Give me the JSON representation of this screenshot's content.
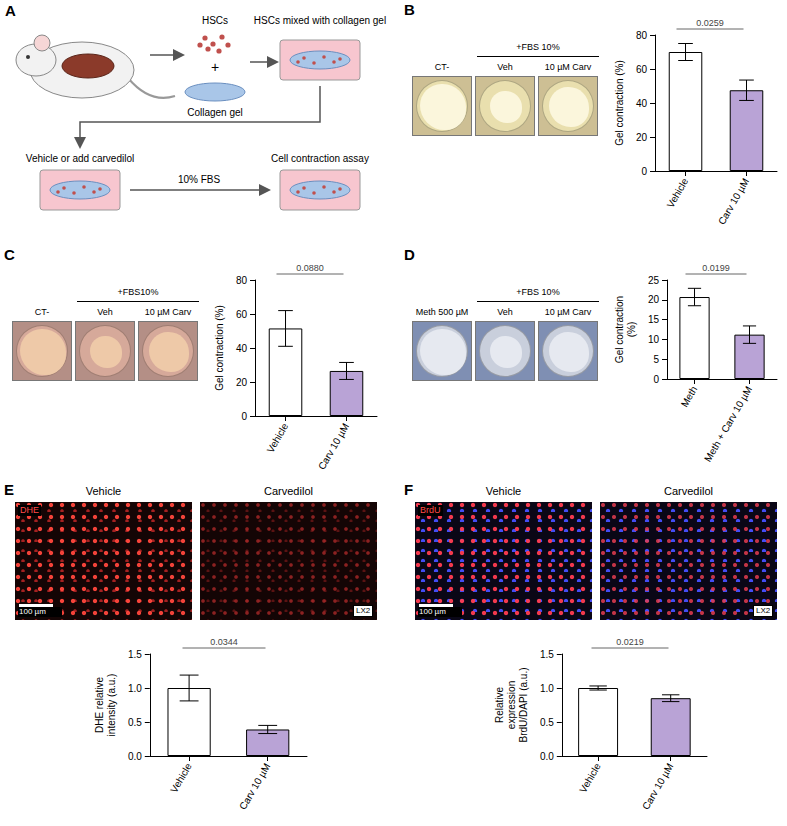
{
  "chart_data": [
    {
      "type": "bar",
      "categories": [
        "Vehicle",
        "Carv 10 µM"
      ],
      "values": [
        70,
        47.5
      ],
      "errors": [
        5,
        6
      ],
      "colors": [
        "#ffffff",
        "#b9a3d6"
      ],
      "y_label": "Gel contraction (%)",
      "annotation": "0.0259",
      "ylim": [
        0,
        80
      ],
      "yticks": [
        0,
        20,
        40,
        60,
        80
      ],
      "grid": false
    },
    {
      "type": "bar",
      "categories": [
        "Vehicle",
        "Carv 10 µM"
      ],
      "values": [
        51.5,
        26.5
      ],
      "errors": [
        10.5,
        5
      ],
      "colors": [
        "#ffffff",
        "#b9a3d6"
      ],
      "y_label": "Gel contraction (%)",
      "annotation": "0.0880",
      "ylim": [
        0,
        80
      ],
      "yticks": [
        0,
        20,
        40,
        60,
        80
      ],
      "grid": false
    },
    {
      "type": "bar",
      "categories": [
        "Meth",
        "Meth + Carv 10 µM"
      ],
      "values": [
        20.7,
        11.2
      ],
      "errors": [
        2.2,
        2.2
      ],
      "colors": [
        "#ffffff",
        "#b9a3d6"
      ],
      "y_label": "Gel contraction (%)",
      "annotation": "0.0199",
      "ylim": [
        0,
        25
      ],
      "yticks": [
        0,
        5,
        10,
        15,
        20,
        25
      ],
      "grid": false
    },
    {
      "type": "bar",
      "categories": [
        "Vehicle",
        "Carv 10 µM"
      ],
      "values": [
        1,
        0.39
      ],
      "errors": [
        0.19,
        0.06
      ],
      "colors": [
        "#ffffff",
        "#b9a3d6"
      ],
      "y_label": "DHE relative intensity (a.u.)",
      "annotation": "0.0344",
      "ylim": [
        0,
        1.5
      ],
      "yticks": [
        {
          "value": 0,
          "label": "0.0"
        },
        0.5,
        {
          "value": 1,
          "label": "1.0"
        },
        1.5
      ],
      "grid": false
    },
    {
      "type": "bar",
      "categories": [
        "Vehicle",
        "Carv 10 µM"
      ],
      "values": [
        1,
        0.85
      ],
      "errors": [
        0.03,
        0.05
      ],
      "colors": [
        "#ffffff",
        "#b9a3d6"
      ],
      "y_label": "Relative expression BrdU/DAPI (a.u.)",
      "annotation": "0.0219",
      "ylim": [
        0,
        1.5
      ],
      "yticks": [
        {
          "value": 0,
          "label": "0.0"
        },
        0.5,
        {
          "value": 1,
          "label": "1.0"
        },
        1.5
      ],
      "grid": false
    }
  ],
  "diagram": {
    "letter": "A",
    "cells": "HSCs",
    "plus": "+",
    "gel": "Collagen gel",
    "mixed": "HSCs mixed with collagen gel",
    "treatment": "Vehicle or add carvedilol",
    "stimulus": "10% FBS",
    "assay": "Cell contraction assay"
  },
  "gel_panels": [
    {
      "letter": "B",
      "control": "CT-",
      "treatment": "+FBS 10%",
      "conditions": [
        "Veh",
        "10 µM Carv"
      ]
    },
    {
      "letter": "C",
      "control": "CT-",
      "treatment": "+FBS10%",
      "conditions": [
        "Veh",
        "10 µM Carv"
      ]
    },
    {
      "letter": "D",
      "control": "Meth 500 µM",
      "treatment": "+FBS 10%",
      "conditions": [
        "Veh",
        "10 µM Carv"
      ]
    }
  ],
  "image_panels": [
    {
      "letter": "E",
      "conditions": [
        "Vehicle",
        "Carvedilol"
      ],
      "stain": "DHE",
      "cell_line": "LX2",
      "scale_bar": "100 µm"
    },
    {
      "letter": "F",
      "conditions": [
        "Vehicle",
        "Carvedilol"
      ],
      "stain": "BrdU",
      "cell_line": "LX2",
      "scale_bar": "100 µm"
    }
  ]
}
